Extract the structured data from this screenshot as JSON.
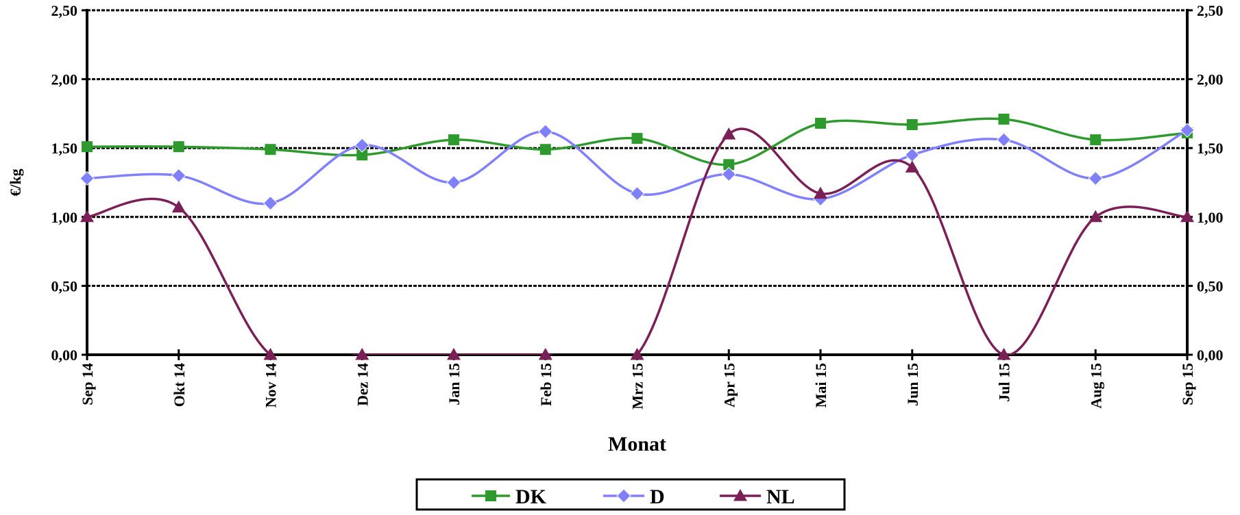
{
  "chart_data": {
    "type": "line",
    "xlabel": "Monat",
    "ylabel": "€/kg",
    "categories": [
      "Sep 14",
      "Okt 14",
      "Nov 14",
      "Dez 14",
      "Jan 15",
      "Feb 15",
      "Mrz 15",
      "Apr 15",
      "Mai 15",
      "Jun 15",
      "Jul 15",
      "Aug 15",
      "Sep 15"
    ],
    "ylim": [
      0,
      2.5
    ],
    "yticks": [
      "0,00",
      "0,50",
      "1,00",
      "1,50",
      "2,00",
      "2,50"
    ],
    "ytick_values": [
      0,
      0.5,
      1.0,
      1.5,
      2.0,
      2.5
    ],
    "grid": true,
    "legend_position": "bottom",
    "smooth": true,
    "series": [
      {
        "name": "DK",
        "color": "#2e9a2e",
        "marker": "square",
        "values": [
          1.51,
          1.51,
          1.49,
          1.45,
          1.56,
          1.49,
          1.57,
          1.38,
          1.68,
          1.67,
          1.71,
          1.56,
          1.61
        ]
      },
      {
        "name": "D",
        "color": "#8080ff",
        "marker": "diamond",
        "values": [
          1.28,
          1.3,
          1.1,
          1.52,
          1.25,
          1.62,
          1.17,
          1.31,
          1.13,
          1.45,
          1.56,
          1.28,
          1.63
        ]
      },
      {
        "name": "NL",
        "color": "#7b1f57",
        "marker": "triangle",
        "values": [
          1.0,
          1.07,
          0.0,
          0.0,
          0.0,
          0.0,
          0.0,
          1.6,
          1.17,
          1.36,
          0.0,
          1.0,
          1.0
        ]
      }
    ]
  }
}
